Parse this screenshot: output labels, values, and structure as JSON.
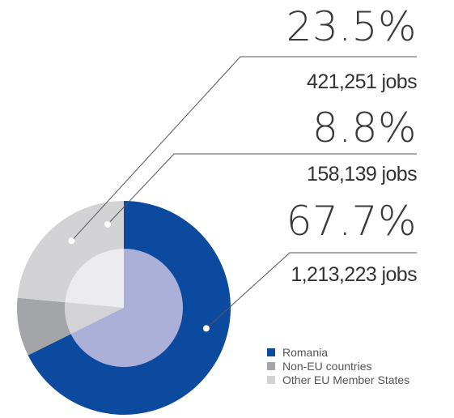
{
  "chart_data": {
    "type": "pie",
    "series": [
      {
        "name": "Romania",
        "percent_label": "67.7%",
        "jobs_label": "1,213,223 jobs",
        "value": 67.7,
        "jobs": 1213223,
        "color": "#0c4aa0",
        "inner_color": "#aab0d8"
      },
      {
        "name": "Non-EU countries",
        "percent_label": "8.8%",
        "jobs_label": "158,139 jobs",
        "value": 8.8,
        "jobs": 158139,
        "color": "#a4a5a8",
        "inner_color": "#d4d4d6"
      },
      {
        "name": "Other EU Member States",
        "percent_label": "23.5%",
        "jobs_label": "421,251 jobs",
        "value": 23.5,
        "jobs": 421251,
        "color": "#d3d3d5",
        "inner_color": "#ececee"
      }
    ],
    "legend_position": "bottom-right"
  }
}
